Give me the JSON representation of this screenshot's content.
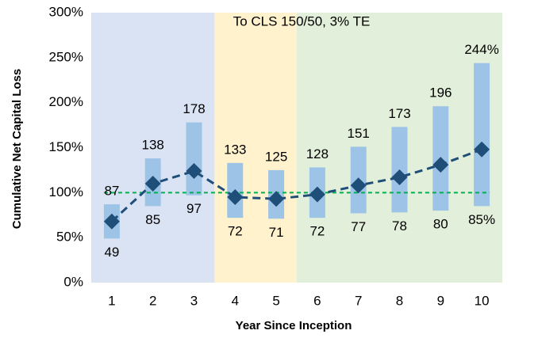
{
  "chart_data": {
    "type": "range-median",
    "annotation": "To CLS 150/50, 3% TE",
    "x_label": "Year Since Inception",
    "y_label": "Cumulative Net Capital Loss",
    "categories": [
      "1",
      "2",
      "3",
      "4",
      "5",
      "6",
      "7",
      "8",
      "9",
      "10"
    ],
    "high": {
      "values": [
        87,
        138,
        178,
        133,
        125,
        128,
        151,
        173,
        196,
        244
      ],
      "value_labels": [
        "87",
        "138",
        "178",
        "133",
        "125",
        "128",
        "151",
        "173",
        "196",
        "244%"
      ]
    },
    "low": {
      "values": [
        49,
        85,
        97,
        72,
        71,
        72,
        77,
        78,
        80,
        85
      ],
      "value_labels": [
        "49",
        "85",
        "97",
        "72",
        "71",
        "72",
        "77",
        "78",
        "80",
        "85%"
      ]
    },
    "range_color": "#9dc3e6",
    "median": {
      "values": [
        68,
        110,
        124,
        95,
        93,
        98,
        108,
        117,
        131,
        148
      ],
      "color": "#1f4e79"
    },
    "reference_line": {
      "value": 100,
      "color": "#00b050"
    },
    "regions": [
      {
        "first": "1",
        "last": "3",
        "color": "#dae3f3"
      },
      {
        "first": "4",
        "last": "5",
        "color": "#fff2cc"
      },
      {
        "first": "6",
        "last": "10",
        "color": "#e2efda"
      }
    ],
    "ylim": [
      0,
      300
    ],
    "yticks": [
      {
        "value": 0,
        "label": "0%"
      },
      {
        "value": 50,
        "label": "50%"
      },
      {
        "value": 100,
        "label": "100%"
      },
      {
        "value": 150,
        "label": "150%"
      },
      {
        "value": 200,
        "label": "200%"
      },
      {
        "value": 250,
        "label": "250%"
      },
      {
        "value": 300,
        "label": "300%"
      }
    ]
  }
}
